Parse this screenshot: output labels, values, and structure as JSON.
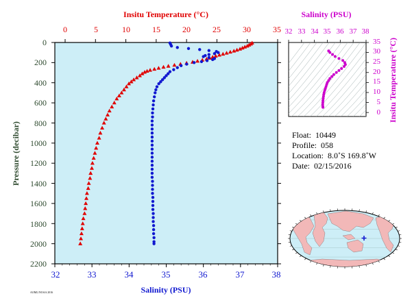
{
  "colors": {
    "temperature": "#e00000",
    "salinity": "#1018d0",
    "salinity_axis": "#cc00cc",
    "plot_bg": "#cdeef7",
    "axis_text": "#2e4a2e",
    "land": "#f2b8b8",
    "ocean": "#cdeef7"
  },
  "chart_data": [
    {
      "type": "scatter",
      "top_axis_label": "Insitu Temperature (°C)",
      "xlabel": "Salinity (PSU)",
      "ylabel": "Pressure (decibar)",
      "temperature_ticks": [
        "0",
        "5",
        "10",
        "15",
        "20",
        "25",
        "30",
        "35"
      ],
      "salinity_ticks": [
        "32",
        "33",
        "34",
        "35",
        "36",
        "37",
        "38"
      ],
      "pressure_ticks": [
        "0",
        "200",
        "400",
        "600",
        "800",
        "1000",
        "1200",
        "1400",
        "1600",
        "1800",
        "2000",
        "2200"
      ],
      "temperature_range": [
        0,
        35
      ],
      "salinity_range": [
        32,
        38
      ],
      "pressure_range": [
        0,
        2200
      ],
      "y_reversed": true,
      "series": [
        {
          "marker": "triangle",
          "color": "#e00000",
          "points": [
            [
              30.8,
              5
            ],
            [
              30.6,
              15
            ],
            [
              30.3,
              25
            ],
            [
              30.0,
              35
            ],
            [
              29.6,
              45
            ],
            [
              29.2,
              55
            ],
            [
              28.8,
              65
            ],
            [
              28.3,
              75
            ],
            [
              27.8,
              85
            ],
            [
              27.2,
              95
            ],
            [
              26.6,
              105
            ],
            [
              26.0,
              115
            ],
            [
              25.4,
              125
            ],
            [
              24.8,
              135
            ],
            [
              24.3,
              145
            ],
            [
              23.8,
              155
            ],
            [
              23.3,
              165
            ],
            [
              22.6,
              175
            ],
            [
              21.8,
              185
            ],
            [
              21.0,
              195
            ],
            [
              20.0,
              205
            ],
            [
              19.0,
              215
            ],
            [
              18.0,
              225
            ],
            [
              17.0,
              235
            ],
            [
              16.2,
              245
            ],
            [
              15.4,
              255
            ],
            [
              14.7,
              265
            ],
            [
              14.0,
              275
            ],
            [
              13.5,
              285
            ],
            [
              13.1,
              295
            ],
            [
              12.7,
              310
            ],
            [
              12.3,
              330
            ],
            [
              11.8,
              350
            ],
            [
              11.3,
              370
            ],
            [
              10.9,
              390
            ],
            [
              10.5,
              410
            ],
            [
              10.1,
              440
            ],
            [
              9.7,
              470
            ],
            [
              9.3,
              500
            ],
            [
              8.9,
              530
            ],
            [
              8.5,
              560
            ],
            [
              8.1,
              600
            ],
            [
              7.7,
              640
            ],
            [
              7.3,
              680
            ],
            [
              7.0,
              720
            ],
            [
              6.7,
              760
            ],
            [
              6.4,
              800
            ],
            [
              6.1,
              850
            ],
            [
              5.8,
              900
            ],
            [
              5.6,
              950
            ],
            [
              5.3,
              1000
            ],
            [
              5.1,
              1050
            ],
            [
              4.9,
              1100
            ],
            [
              4.7,
              1150
            ],
            [
              4.5,
              1200
            ],
            [
              4.4,
              1250
            ],
            [
              4.2,
              1300
            ],
            [
              4.1,
              1350
            ],
            [
              3.9,
              1400
            ],
            [
              3.8,
              1450
            ],
            [
              3.6,
              1500
            ],
            [
              3.5,
              1550
            ],
            [
              3.4,
              1600
            ],
            [
              3.3,
              1650
            ],
            [
              3.2,
              1700
            ],
            [
              3.0,
              1750
            ],
            [
              2.9,
              1800
            ],
            [
              2.8,
              1850
            ],
            [
              2.7,
              1900
            ],
            [
              2.6,
              1950
            ],
            [
              2.5,
              2000
            ]
          ]
        },
        {
          "marker": "circle",
          "color": "#1018d0",
          "points": [
            [
              35.1,
              5
            ],
            [
              35.12,
              20
            ],
            [
              35.14,
              35
            ],
            [
              35.3,
              50
            ],
            [
              35.6,
              60
            ],
            [
              35.9,
              70
            ],
            [
              36.15,
              80
            ],
            [
              36.35,
              90
            ],
            [
              36.4,
              100
            ],
            [
              36.3,
              110
            ],
            [
              36.15,
              120
            ],
            [
              36.05,
              130
            ],
            [
              36.0,
              140
            ],
            [
              36.15,
              150
            ],
            [
              36.3,
              160
            ],
            [
              36.25,
              170
            ],
            [
              36.1,
              180
            ],
            [
              35.95,
              190
            ],
            [
              35.75,
              200
            ],
            [
              35.55,
              215
            ],
            [
              35.4,
              230
            ],
            [
              35.3,
              250
            ],
            [
              35.2,
              270
            ],
            [
              35.1,
              290
            ],
            [
              35.05,
              310
            ],
            [
              35.0,
              330
            ],
            [
              34.95,
              350
            ],
            [
              34.9,
              370
            ],
            [
              34.85,
              390
            ],
            [
              34.8,
              410
            ],
            [
              34.75,
              440
            ],
            [
              34.72,
              470
            ],
            [
              34.7,
              500
            ],
            [
              34.68,
              540
            ],
            [
              34.66,
              580
            ],
            [
              34.65,
              620
            ],
            [
              34.64,
              660
            ],
            [
              34.63,
              700
            ],
            [
              34.63,
              740
            ],
            [
              34.62,
              780
            ],
            [
              34.62,
              820
            ],
            [
              34.62,
              860
            ],
            [
              34.62,
              900
            ],
            [
              34.62,
              940
            ],
            [
              34.62,
              980
            ],
            [
              34.62,
              1020
            ],
            [
              34.62,
              1060
            ],
            [
              34.62,
              1100
            ],
            [
              34.62,
              1140
            ],
            [
              34.62,
              1180
            ],
            [
              34.62,
              1220
            ],
            [
              34.62,
              1260
            ],
            [
              34.62,
              1300
            ],
            [
              34.62,
              1340
            ],
            [
              34.63,
              1380
            ],
            [
              34.63,
              1420
            ],
            [
              34.63,
              1460
            ],
            [
              34.63,
              1500
            ],
            [
              34.64,
              1540
            ],
            [
              34.64,
              1580
            ],
            [
              34.64,
              1620
            ],
            [
              34.64,
              1660
            ],
            [
              34.65,
              1700
            ],
            [
              34.65,
              1740
            ],
            [
              34.65,
              1780
            ],
            [
              34.66,
              1820
            ],
            [
              34.66,
              1860
            ],
            [
              34.66,
              1900
            ],
            [
              34.67,
              1940
            ],
            [
              34.67,
              1980
            ],
            [
              34.67,
              2000
            ]
          ]
        }
      ]
    },
    {
      "type": "scatter",
      "title": "Salinity (PSU)",
      "ylabel": "Insitu Temperature (°C)",
      "salinity_ticks": [
        "32",
        "33",
        "34",
        "35",
        "36",
        "37",
        "38"
      ],
      "temperature_ticks": [
        "0",
        "5",
        "10",
        "15",
        "20",
        "25",
        "30",
        "35"
      ],
      "salinity_range": [
        32,
        38
      ],
      "temperature_range": [
        -2,
        35
      ],
      "series": [
        {
          "marker": "circle",
          "color": "#cc00cc",
          "points": [
            [
              35.1,
              30.8
            ],
            [
              35.2,
              30.0
            ],
            [
              35.4,
              29.0
            ],
            [
              35.6,
              28.0
            ],
            [
              35.9,
              27.0
            ],
            [
              36.2,
              26.0
            ],
            [
              36.35,
              25.0
            ],
            [
              36.4,
              24.0
            ],
            [
              36.3,
              23.0
            ],
            [
              36.1,
              22.0
            ],
            [
              35.9,
              21.0
            ],
            [
              35.7,
              20.0
            ],
            [
              35.5,
              19.0
            ],
            [
              35.35,
              18.0
            ],
            [
              35.2,
              17.0
            ],
            [
              35.1,
              16.0
            ],
            [
              35.0,
              15.0
            ],
            [
              34.95,
              14.0
            ],
            [
              34.9,
              13.0
            ],
            [
              34.85,
              12.0
            ],
            [
              34.8,
              11.0
            ],
            [
              34.75,
              10.0
            ],
            [
              34.72,
              9.0
            ],
            [
              34.7,
              8.0
            ],
            [
              34.68,
              7.0
            ],
            [
              34.66,
              6.0
            ],
            [
              34.65,
              5.0
            ],
            [
              34.64,
              4.0
            ],
            [
              34.65,
              3.0
            ],
            [
              34.66,
              2.6
            ]
          ]
        }
      ]
    }
  ],
  "info": {
    "float_label": "Float:",
    "float_value": "10449",
    "profile_label": "Profile:",
    "profile_value": "058",
    "location_label": "Location:",
    "location_value": "8.0˚S  169.8˚W",
    "date_label": "Date:",
    "date_value": "02/15/2016"
  },
  "footnote": "AOML/NOAA 2016"
}
